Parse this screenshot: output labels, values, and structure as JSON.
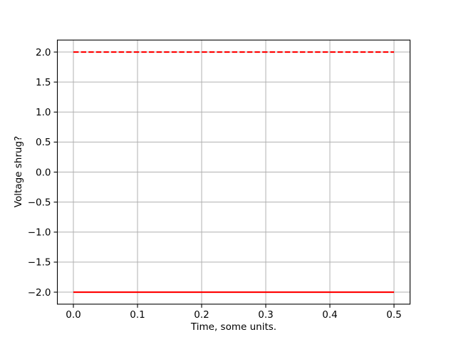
{
  "chart_data": {
    "type": "line",
    "title": "",
    "xlabel": "Time, some units.",
    "ylabel": "Voltage shrug?",
    "xlim": [
      -0.025,
      0.525
    ],
    "ylim": [
      -2.2,
      2.2
    ],
    "x_ticks": [
      0.0,
      0.1,
      0.2,
      0.3,
      0.4,
      0.5
    ],
    "y_ticks": [
      -2.0,
      -1.5,
      -1.0,
      -0.5,
      0.0,
      0.5,
      1.0,
      1.5,
      2.0
    ],
    "grid": true,
    "legend": null,
    "grid_color": "#b0b0b0",
    "spine_color": "#000000",
    "background": "#ffffff",
    "series": [
      {
        "name": "upper-constant",
        "style": "dashed",
        "color": "#ff0000",
        "x": [
          0.0,
          0.5
        ],
        "y": [
          2.0,
          2.0
        ]
      },
      {
        "name": "lower-constant",
        "style": "solid",
        "color": "#ff0000",
        "x": [
          0.0,
          0.5
        ],
        "y": [
          -2.0,
          -2.0
        ]
      }
    ]
  }
}
